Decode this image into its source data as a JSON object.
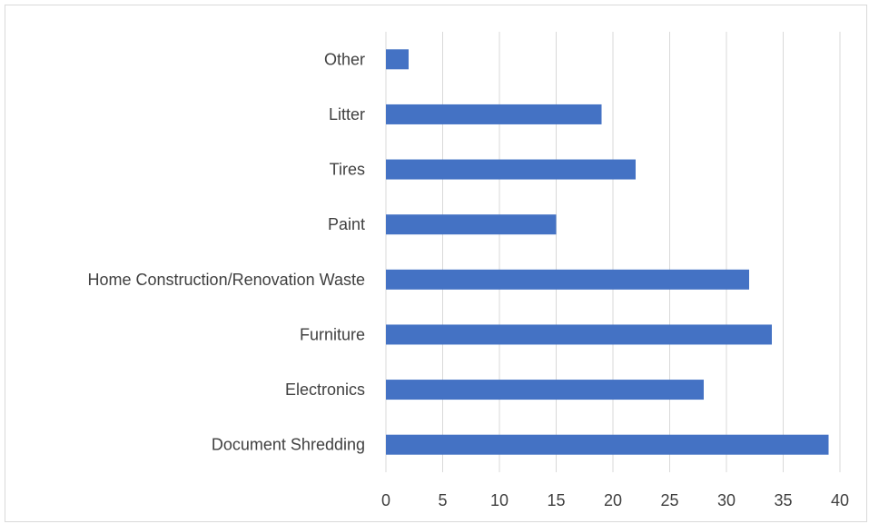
{
  "chart_data": {
    "type": "bar",
    "orientation": "horizontal",
    "title": "",
    "xlabel": "",
    "ylabel": "",
    "categories": [
      "Document Shredding",
      "Electronics",
      "Furniture",
      "Home Construction/Renovation Waste",
      "Paint",
      "Tires",
      "Litter",
      "Other"
    ],
    "values": [
      39,
      28,
      34,
      32,
      15,
      22,
      19,
      2
    ],
    "xlim": [
      0,
      40
    ],
    "xticks": [
      "0",
      "5",
      "10",
      "15",
      "20",
      "25",
      "30",
      "35",
      "40"
    ],
    "grid": "vertical",
    "legend": "none",
    "bar_color": "#4472C4",
    "grid_color": "#d9d9d9"
  }
}
